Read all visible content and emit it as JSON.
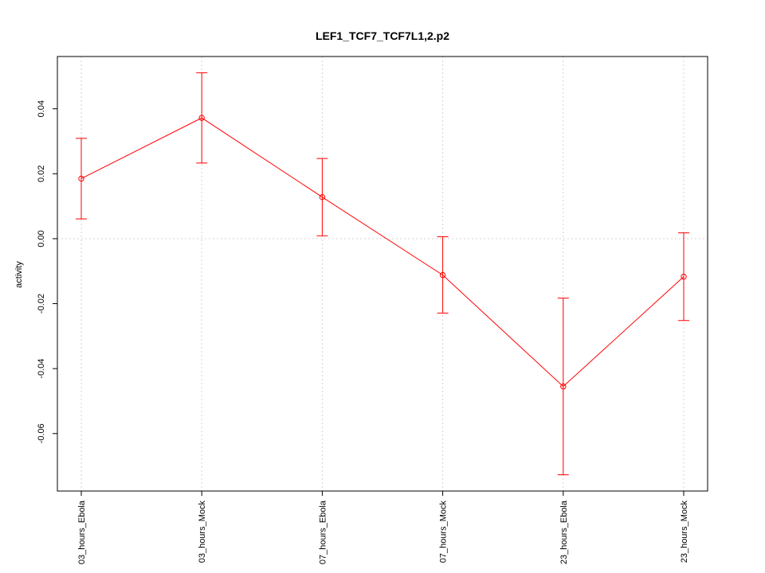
{
  "chart_data": {
    "type": "line",
    "title": "LEF1_TCF7_TCF7L1,2.p2",
    "xlabel": "",
    "ylabel": "activity",
    "categories": [
      "03_hours_Ebola",
      "03_hours_Mock",
      "07_hours_Ebola",
      "07_hours_Mock",
      "23_hours_Ebola",
      "23_hours_Mock"
    ],
    "series": [
      {
        "values": [
          0.0185,
          0.0372,
          0.0128,
          -0.0112,
          -0.0455,
          -0.0117
        ],
        "lower": [
          0.0061,
          0.0233,
          0.0009,
          -0.0229,
          -0.0727,
          -0.0252
        ],
        "upper": [
          0.0309,
          0.0511,
          0.0247,
          0.0006,
          -0.0183,
          0.0018
        ],
        "color": "#ff0000"
      }
    ],
    "yticks": [
      -0.06,
      -0.04,
      -0.02,
      0.0,
      0.02,
      0.04
    ],
    "ytick_labels": [
      "-0.06",
      "-0.04",
      "-0.02",
      "0.00",
      "0.02",
      "0.04"
    ],
    "ylim": [
      -0.0777,
      0.0561
    ],
    "grid": true,
    "reference_line": 0
  }
}
